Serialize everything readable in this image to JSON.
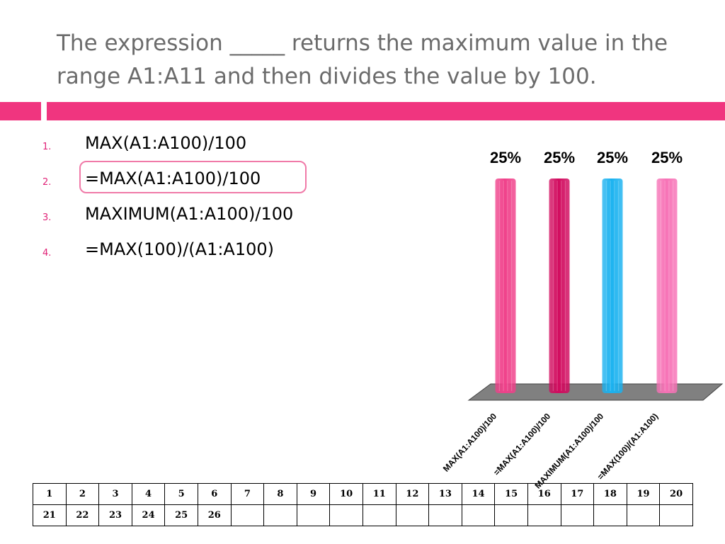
{
  "slide": {
    "title": "The expression _____ returns the maximum value in the range A1:A11 and then divides the value by 100."
  },
  "options": [
    {
      "number": "1.",
      "text": "MAX(A1:A100)/100"
    },
    {
      "number": "2.",
      "text": "=MAX(A1:A100)/100"
    },
    {
      "number": "3.",
      "text": "MAXIMUM(A1:A100)/100"
    },
    {
      "number": "4.",
      "text": "=MAX(100)/(A1:A100)"
    }
  ],
  "colors": {
    "accent": "#f0357f",
    "title": "#6b6b6b",
    "number": "#e02277"
  },
  "chart_data": {
    "type": "bar",
    "categories": [
      "MAX(A1:A100)/100",
      "=MAX(A1:A100)/100",
      "MAXIMUM(A1:A100)/100",
      "=MAX(100)/(A1:A100)"
    ],
    "values": [
      25,
      25,
      25,
      25
    ],
    "data_labels": [
      "25%",
      "25%",
      "25%",
      "25%"
    ],
    "colors": [
      "#f0408a",
      "#d10a5e",
      "#1ab2f0",
      "#f772b6"
    ],
    "ylim": [
      0,
      25
    ],
    "title": "",
    "xlabel": "",
    "ylabel": "",
    "grid": false
  },
  "grid_table": {
    "rows": [
      [
        "1",
        "2",
        "3",
        "4",
        "5",
        "6",
        "7",
        "8",
        "9",
        "10",
        "11",
        "12",
        "13",
        "14",
        "15",
        "16",
        "17",
        "18",
        "19",
        "20"
      ],
      [
        "21",
        "22",
        "23",
        "24",
        "25",
        "26",
        "",
        "",
        "",
        "",
        "",
        "",
        "",
        "",
        "",
        "",
        "",
        "",
        "",
        ""
      ]
    ]
  }
}
